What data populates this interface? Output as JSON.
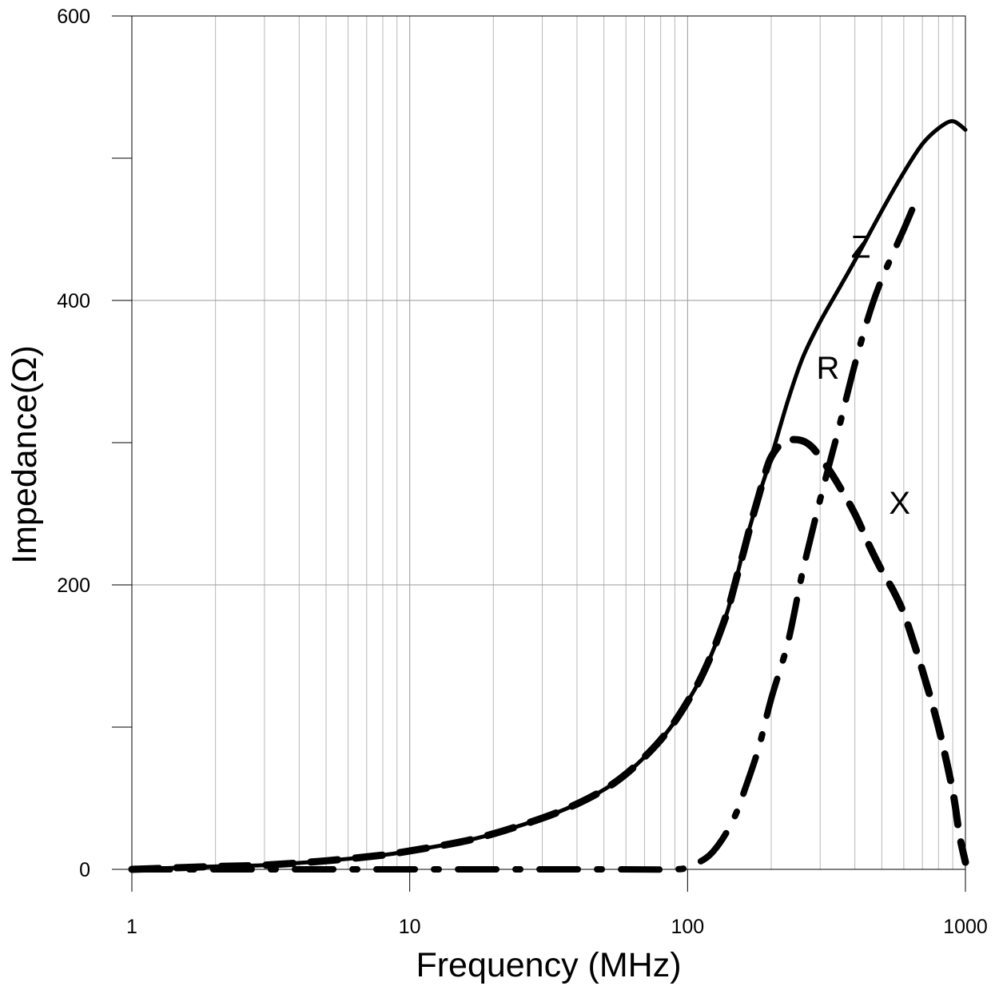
{
  "chart_data": {
    "type": "line",
    "title": "",
    "xlabel": "Frequency (MHz)",
    "ylabel": "Impedance(Ω)",
    "xscale": "log",
    "xlim": [
      1,
      1000
    ],
    "ylim": [
      0,
      600
    ],
    "x_ticks": [
      {
        "value": 1,
        "label": "1"
      },
      {
        "value": 10,
        "label": "10"
      },
      {
        "value": 100,
        "label": "100"
      },
      {
        "value": 1000,
        "label": "1000"
      }
    ],
    "y_ticks": [
      {
        "value": 0,
        "label": "0"
      },
      {
        "value": 200,
        "label": "200"
      },
      {
        "value": 400,
        "label": "400"
      },
      {
        "value": 600,
        "label": "600"
      }
    ],
    "y_minor_ticks": [
      100,
      300,
      500
    ],
    "grid": true,
    "series": [
      {
        "name": "Z",
        "style": "solid",
        "color": "#000000",
        "label_at": [
          420,
          430
        ],
        "x": [
          1,
          2,
          3,
          5,
          8,
          10,
          15,
          20,
          30,
          40,
          50,
          60,
          70,
          80,
          90,
          100,
          110,
          120,
          130,
          140,
          150,
          160,
          170,
          180,
          200,
          230,
          260,
          300,
          350,
          400,
          500,
          600,
          700,
          800,
          900,
          1000
        ],
        "y": [
          0,
          2,
          3,
          6,
          10,
          13,
          19,
          25,
          36,
          46,
          56,
          67,
          79,
          91,
          104,
          118,
          132,
          148,
          165,
          183,
          205,
          227,
          245,
          262,
          290,
          330,
          360,
          385,
          408,
          428,
          463,
          490,
          510,
          521,
          526,
          520
        ]
      },
      {
        "name": "R",
        "style": "dashdot",
        "color": "#000000",
        "label_at": [
          320,
          345
        ],
        "x": [
          1,
          10,
          50,
          90,
          100,
          110,
          120,
          130,
          140,
          150,
          160,
          180,
          200,
          230,
          260,
          300,
          350,
          400,
          450,
          500,
          600,
          680
        ],
        "y": [
          0,
          0,
          0,
          0,
          2,
          5,
          10,
          18,
          28,
          40,
          55,
          85,
          120,
          160,
          210,
          260,
          310,
          355,
          390,
          415,
          450,
          475
        ]
      },
      {
        "name": "X",
        "style": "dashed",
        "color": "#000000",
        "label_at": [
          580,
          250
        ],
        "x": [
          1,
          2,
          3,
          5,
          8,
          10,
          15,
          20,
          30,
          40,
          50,
          60,
          70,
          80,
          90,
          100,
          110,
          120,
          130,
          140,
          150,
          160,
          170,
          180,
          190,
          200,
          220,
          250,
          280,
          320,
          350,
          400,
          450,
          500,
          550,
          600,
          650,
          700,
          800,
          900,
          950,
          1000
        ],
        "y": [
          0,
          2,
          3,
          6,
          10,
          13,
          19,
          25,
          36,
          46,
          56,
          67,
          79,
          91,
          104,
          118,
          132,
          148,
          165,
          183,
          205,
          225,
          245,
          262,
          278,
          290,
          300,
          302,
          297,
          282,
          270,
          250,
          228,
          210,
          196,
          180,
          160,
          140,
          100,
          55,
          25,
          5
        ]
      }
    ]
  }
}
